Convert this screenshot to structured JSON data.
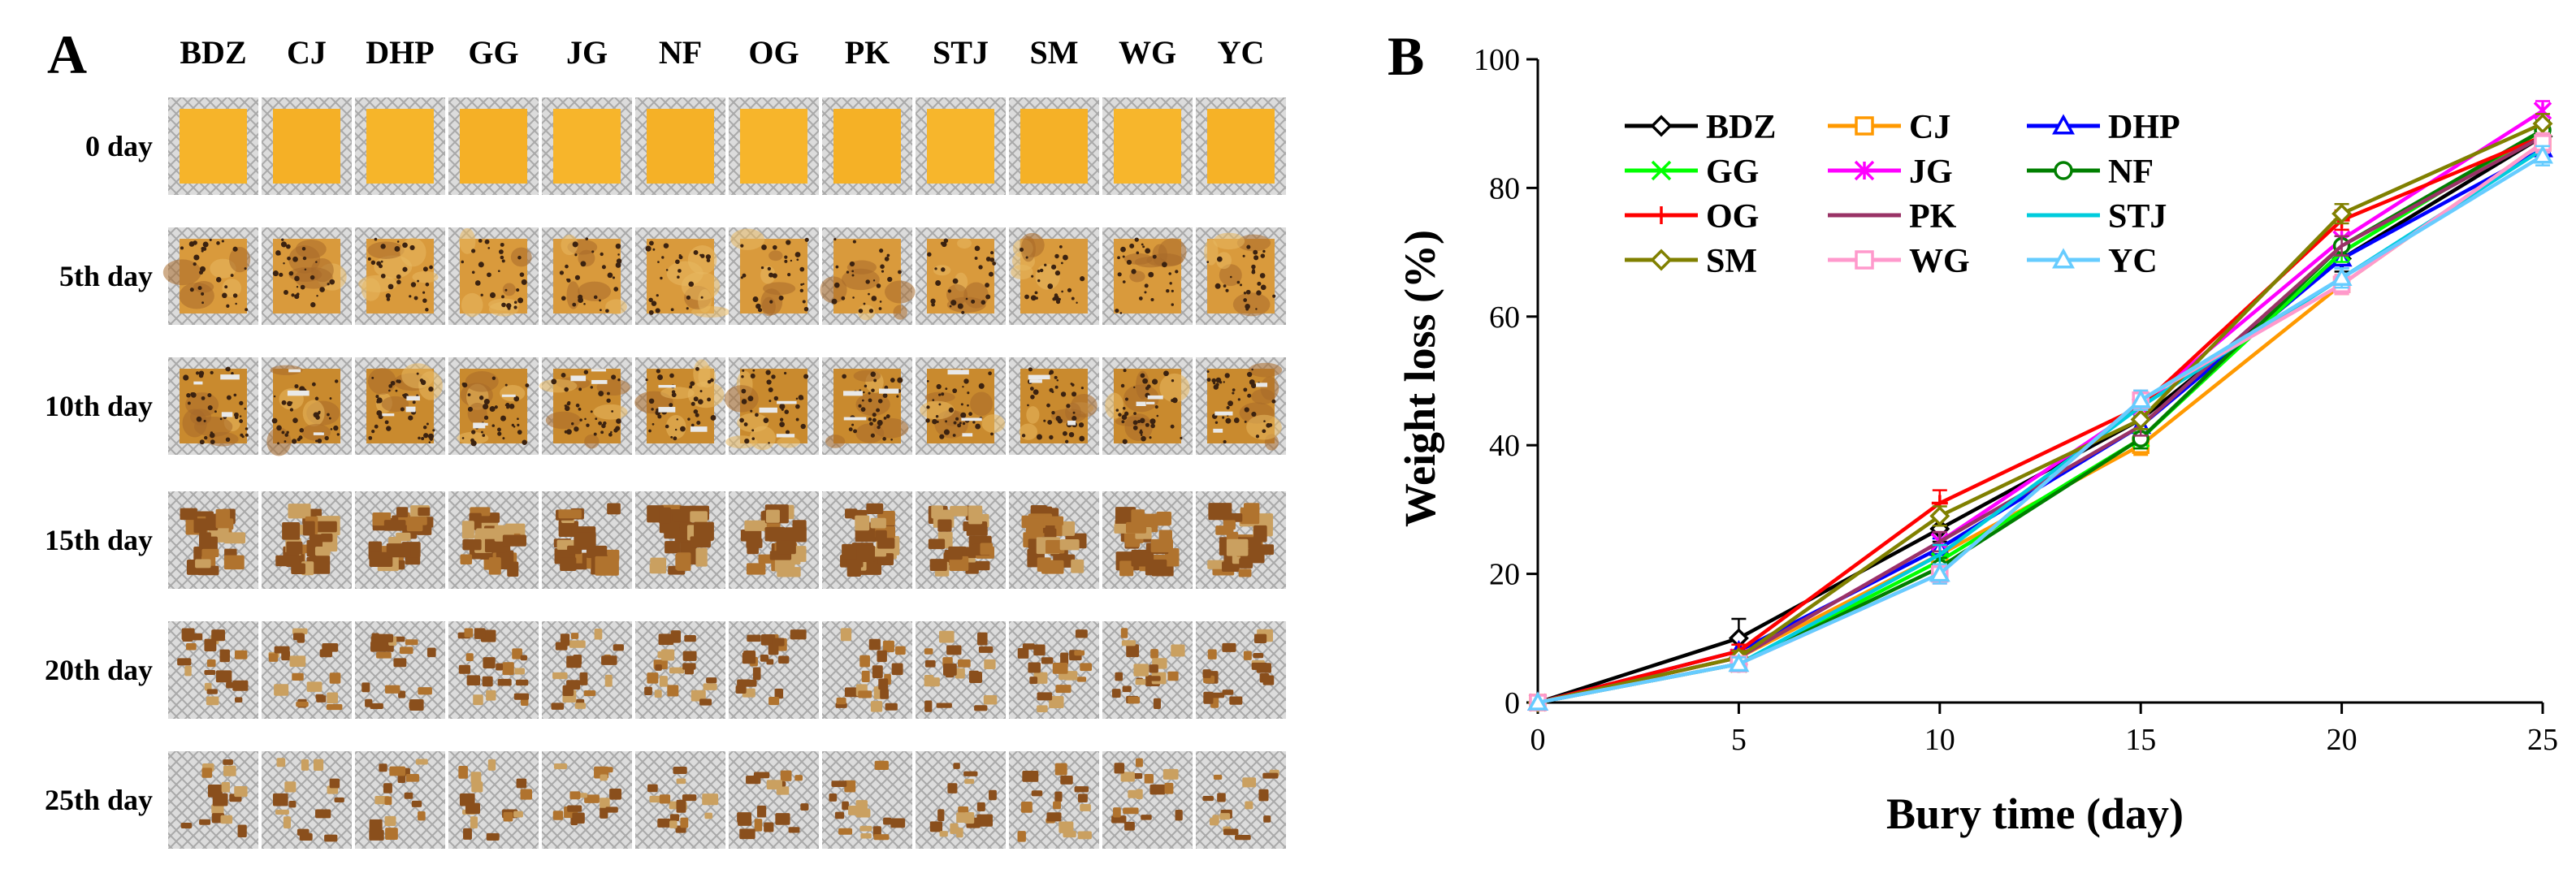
{
  "panel_a": {
    "letter": "A",
    "columns": [
      "BDZ",
      "CJ",
      "DHP",
      "GG",
      "JG",
      "NF",
      "OG",
      "PK",
      "STJ",
      "SM",
      "WG",
      "YC"
    ],
    "rows": [
      {
        "label": "0 day",
        "stage": 0
      },
      {
        "label": "5th day",
        "stage": 1
      },
      {
        "label": "10th day",
        "stage": 2
      },
      {
        "label": "15th day",
        "stage": 3
      },
      {
        "label": "20th day",
        "stage": 4
      },
      {
        "label": "25th day",
        "stage": 5
      }
    ],
    "colors": {
      "film_fresh": "#f2a51a",
      "film_mid": "#c98a2e",
      "film_dark": "#8a4f1c",
      "mesh": "#d6d6d6"
    }
  },
  "chart_data": {
    "type": "line",
    "panel_letter": "B",
    "title": "",
    "xlabel": "Bury time (day)",
    "ylabel": "Weight loss (%)",
    "xlim": [
      0,
      25
    ],
    "ylim": [
      0,
      100
    ],
    "xticks": [
      0,
      5,
      10,
      15,
      20,
      25
    ],
    "yticks": [
      0,
      20,
      40,
      60,
      80,
      100
    ],
    "legend_position": "top-left",
    "x": [
      0,
      5,
      10,
      15,
      20,
      25
    ],
    "series": [
      {
        "name": "BDZ",
        "color": "#000000",
        "marker": "diamond",
        "values": [
          0,
          10,
          27,
          44,
          69,
          88
        ],
        "err": [
          0,
          3,
          2,
          1.5,
          2,
          1.5
        ]
      },
      {
        "name": "CJ",
        "color": "#ff9900",
        "marker": "square",
        "values": [
          0,
          7,
          23,
          40,
          65,
          87
        ],
        "err": [
          0,
          1,
          1.5,
          1.5,
          1.5,
          1.5
        ]
      },
      {
        "name": "DHP",
        "color": "#0000ff",
        "marker": "triangle",
        "values": [
          0,
          8,
          24,
          43,
          69,
          86
        ],
        "err": [
          0,
          1,
          1.5,
          1.5,
          1.5,
          1.5
        ]
      },
      {
        "name": "GG",
        "color": "#00ff00",
        "marker": "x",
        "values": [
          0,
          6,
          22,
          41,
          70,
          89
        ],
        "err": [
          0,
          1,
          1.5,
          1.5,
          1.5,
          1.5
        ]
      },
      {
        "name": "JG",
        "color": "#ff00ff",
        "marker": "star",
        "values": [
          0,
          7,
          25,
          46,
          72,
          92
        ],
        "err": [
          0,
          1,
          1.5,
          1.5,
          1.5,
          1.5
        ]
      },
      {
        "name": "NF",
        "color": "#007f00",
        "marker": "circle",
        "values": [
          0,
          6,
          21,
          41,
          71,
          89
        ],
        "err": [
          0,
          1,
          1.5,
          1.5,
          1.5,
          1.5
        ]
      },
      {
        "name": "OG",
        "color": "#ff0000",
        "marker": "plus",
        "values": [
          0,
          8,
          31,
          46,
          75,
          88
        ],
        "err": [
          0,
          1,
          2,
          1.5,
          1.5,
          1.5
        ]
      },
      {
        "name": "PK",
        "color": "#993366",
        "marker": "none",
        "values": [
          0,
          7,
          25,
          43,
          71,
          88
        ],
        "err": [
          0,
          1,
          1.5,
          1.5,
          1.5,
          1.5
        ]
      },
      {
        "name": "STJ",
        "color": "#00ccdd",
        "marker": "none",
        "values": [
          0,
          6,
          23,
          46,
          66,
          86
        ],
        "err": [
          0,
          1,
          1.5,
          1.5,
          1.5,
          1.5
        ]
      },
      {
        "name": "SM",
        "color": "#808000",
        "marker": "diamond",
        "values": [
          0,
          7,
          29,
          44,
          76,
          90
        ],
        "err": [
          0,
          1,
          1.5,
          1.5,
          1.5,
          1.5
        ]
      },
      {
        "name": "WG",
        "color": "#ff99cc",
        "marker": "square",
        "values": [
          0,
          6,
          20,
          47,
          65,
          87
        ],
        "err": [
          0,
          1,
          1.5,
          1.5,
          1.5,
          1.5
        ]
      },
      {
        "name": "YC",
        "color": "#66ccff",
        "marker": "triangle",
        "values": [
          0,
          6,
          20,
          47,
          66,
          85
        ],
        "err": [
          0,
          1,
          1.5,
          1.5,
          1.5,
          1.5
        ]
      }
    ]
  }
}
